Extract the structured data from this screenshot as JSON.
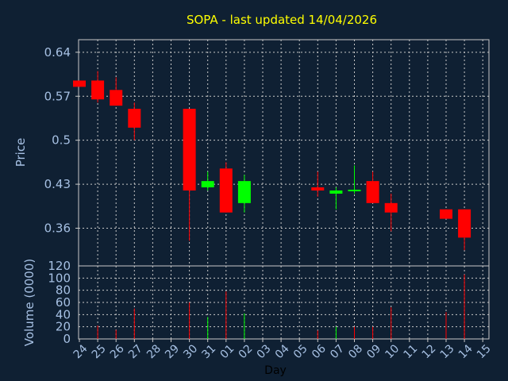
{
  "chart_data": {
    "type": "candlestick",
    "title": "SOPA - last updated 14/04/2026",
    "xlabel": "Day",
    "colors": {
      "background": "#0f2033",
      "plot_border": "#c8c8c8",
      "grid": "#c8c8c8",
      "up": "#00ff00",
      "down": "#ff0000",
      "title": "#ffff00",
      "tick": "#a6c0e3",
      "xlabel": "#000000"
    },
    "x_ticks": [
      "24",
      "25",
      "26",
      "27",
      "28",
      "29",
      "30",
      "31",
      "01",
      "02",
      "03",
      "04",
      "05",
      "06",
      "07",
      "08",
      "09",
      "10",
      "11",
      "12",
      "13",
      "14",
      "15"
    ],
    "price_panel": {
      "ylabel": "Price",
      "yticks": [
        "0.64",
        "0.57",
        "0.5",
        "0.43",
        "0.36"
      ],
      "ylim": [
        0.3,
        0.66
      ],
      "grid": true,
      "candles": [
        {
          "day": "24",
          "open": 0.595,
          "close": 0.585,
          "high": 0.595,
          "low": 0.585
        },
        {
          "day": "25",
          "open": 0.595,
          "close": 0.565,
          "high": 0.61,
          "low": 0.56
        },
        {
          "day": "26",
          "open": 0.58,
          "close": 0.555,
          "high": 0.6,
          "low": 0.555
        },
        {
          "day": "27",
          "open": 0.55,
          "close": 0.52,
          "high": 0.56,
          "low": 0.5
        },
        {
          "day": "30",
          "open": 0.55,
          "close": 0.42,
          "high": 0.55,
          "low": 0.34
        },
        {
          "day": "31",
          "open": 0.425,
          "close": 0.435,
          "high": 0.45,
          "low": 0.42
        },
        {
          "day": "01",
          "open": 0.455,
          "close": 0.385,
          "high": 0.465,
          "low": 0.385
        },
        {
          "day": "02",
          "open": 0.4,
          "close": 0.435,
          "high": 0.445,
          "low": 0.385
        },
        {
          "day": "06",
          "open": 0.425,
          "close": 0.42,
          "high": 0.45,
          "low": 0.41
        },
        {
          "day": "07",
          "open": 0.415,
          "close": 0.42,
          "high": 0.425,
          "low": 0.39
        },
        {
          "day": "08",
          "open": 0.42,
          "close": 0.42,
          "high": 0.46,
          "low": 0.415
        },
        {
          "day": "09",
          "open": 0.435,
          "close": 0.4,
          "high": 0.45,
          "low": 0.4
        },
        {
          "day": "10",
          "open": 0.4,
          "close": 0.385,
          "high": 0.415,
          "low": 0.355
        },
        {
          "day": "13",
          "open": 0.39,
          "close": 0.375,
          "high": 0.39,
          "low": 0.375
        },
        {
          "day": "14",
          "open": 0.39,
          "close": 0.345,
          "high": 0.39,
          "low": 0.325
        }
      ]
    },
    "volume_panel": {
      "ylabel": "Volume (0000)",
      "yticks": [
        "120",
        "100",
        "80",
        "60",
        "40",
        "20",
        "0"
      ],
      "ylim": [
        0,
        120
      ],
      "grid": true,
      "bars": [
        {
          "day": "25",
          "value": 22,
          "color": "down"
        },
        {
          "day": "26",
          "value": 15,
          "color": "down"
        },
        {
          "day": "27",
          "value": 50,
          "color": "down"
        },
        {
          "day": "30",
          "value": 60,
          "color": "down"
        },
        {
          "day": "31",
          "value": 36,
          "color": "up"
        },
        {
          "day": "01",
          "value": 78,
          "color": "down"
        },
        {
          "day": "02",
          "value": 42,
          "color": "up"
        },
        {
          "day": "06",
          "value": 14,
          "color": "down"
        },
        {
          "day": "07",
          "value": 20,
          "color": "up"
        },
        {
          "day": "08",
          "value": 20,
          "color": "down"
        },
        {
          "day": "09",
          "value": 20,
          "color": "down"
        },
        {
          "day": "10",
          "value": 52,
          "color": "down"
        },
        {
          "day": "13",
          "value": 44,
          "color": "down"
        },
        {
          "day": "14",
          "value": 106,
          "color": "down"
        }
      ]
    }
  }
}
